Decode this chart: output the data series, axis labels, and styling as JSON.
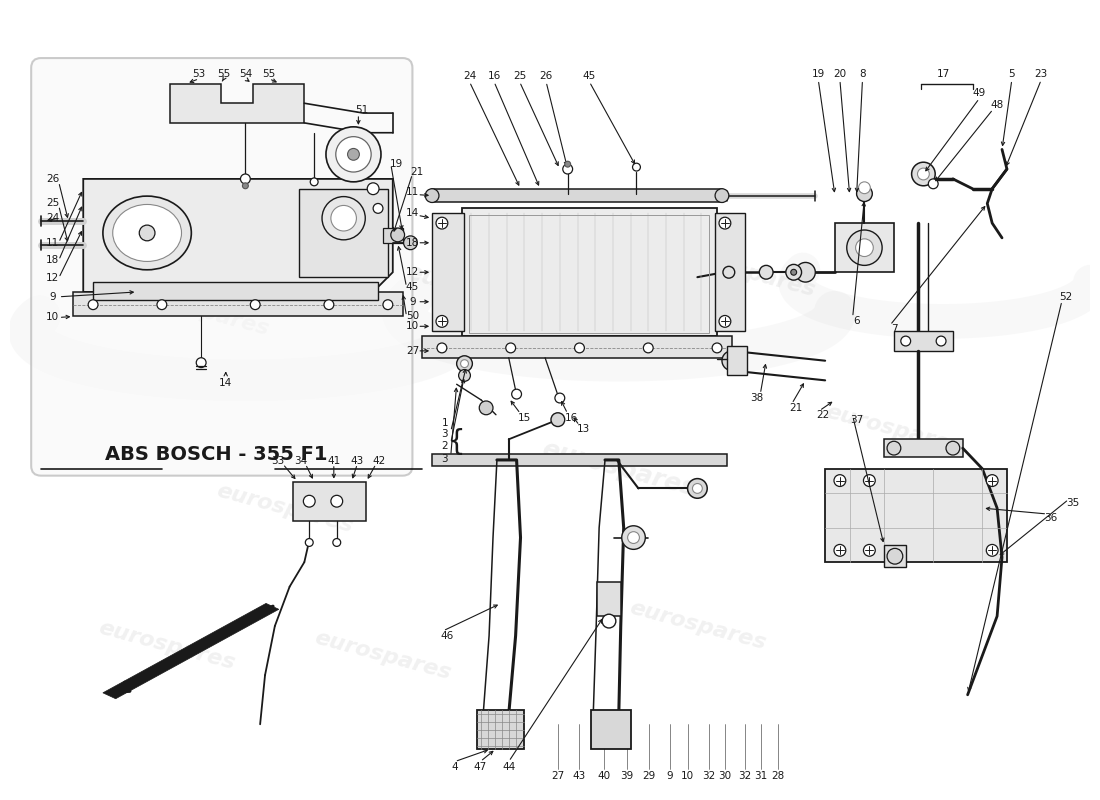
{
  "bg_color": "#ffffff",
  "line_color": "#1a1a1a",
  "watermark_color": "#cccccc",
  "watermark_text": "eurospares",
  "abs_label": "ABS BOSCH - 355 F1",
  "box_edge_color": "#aaaaaa"
}
